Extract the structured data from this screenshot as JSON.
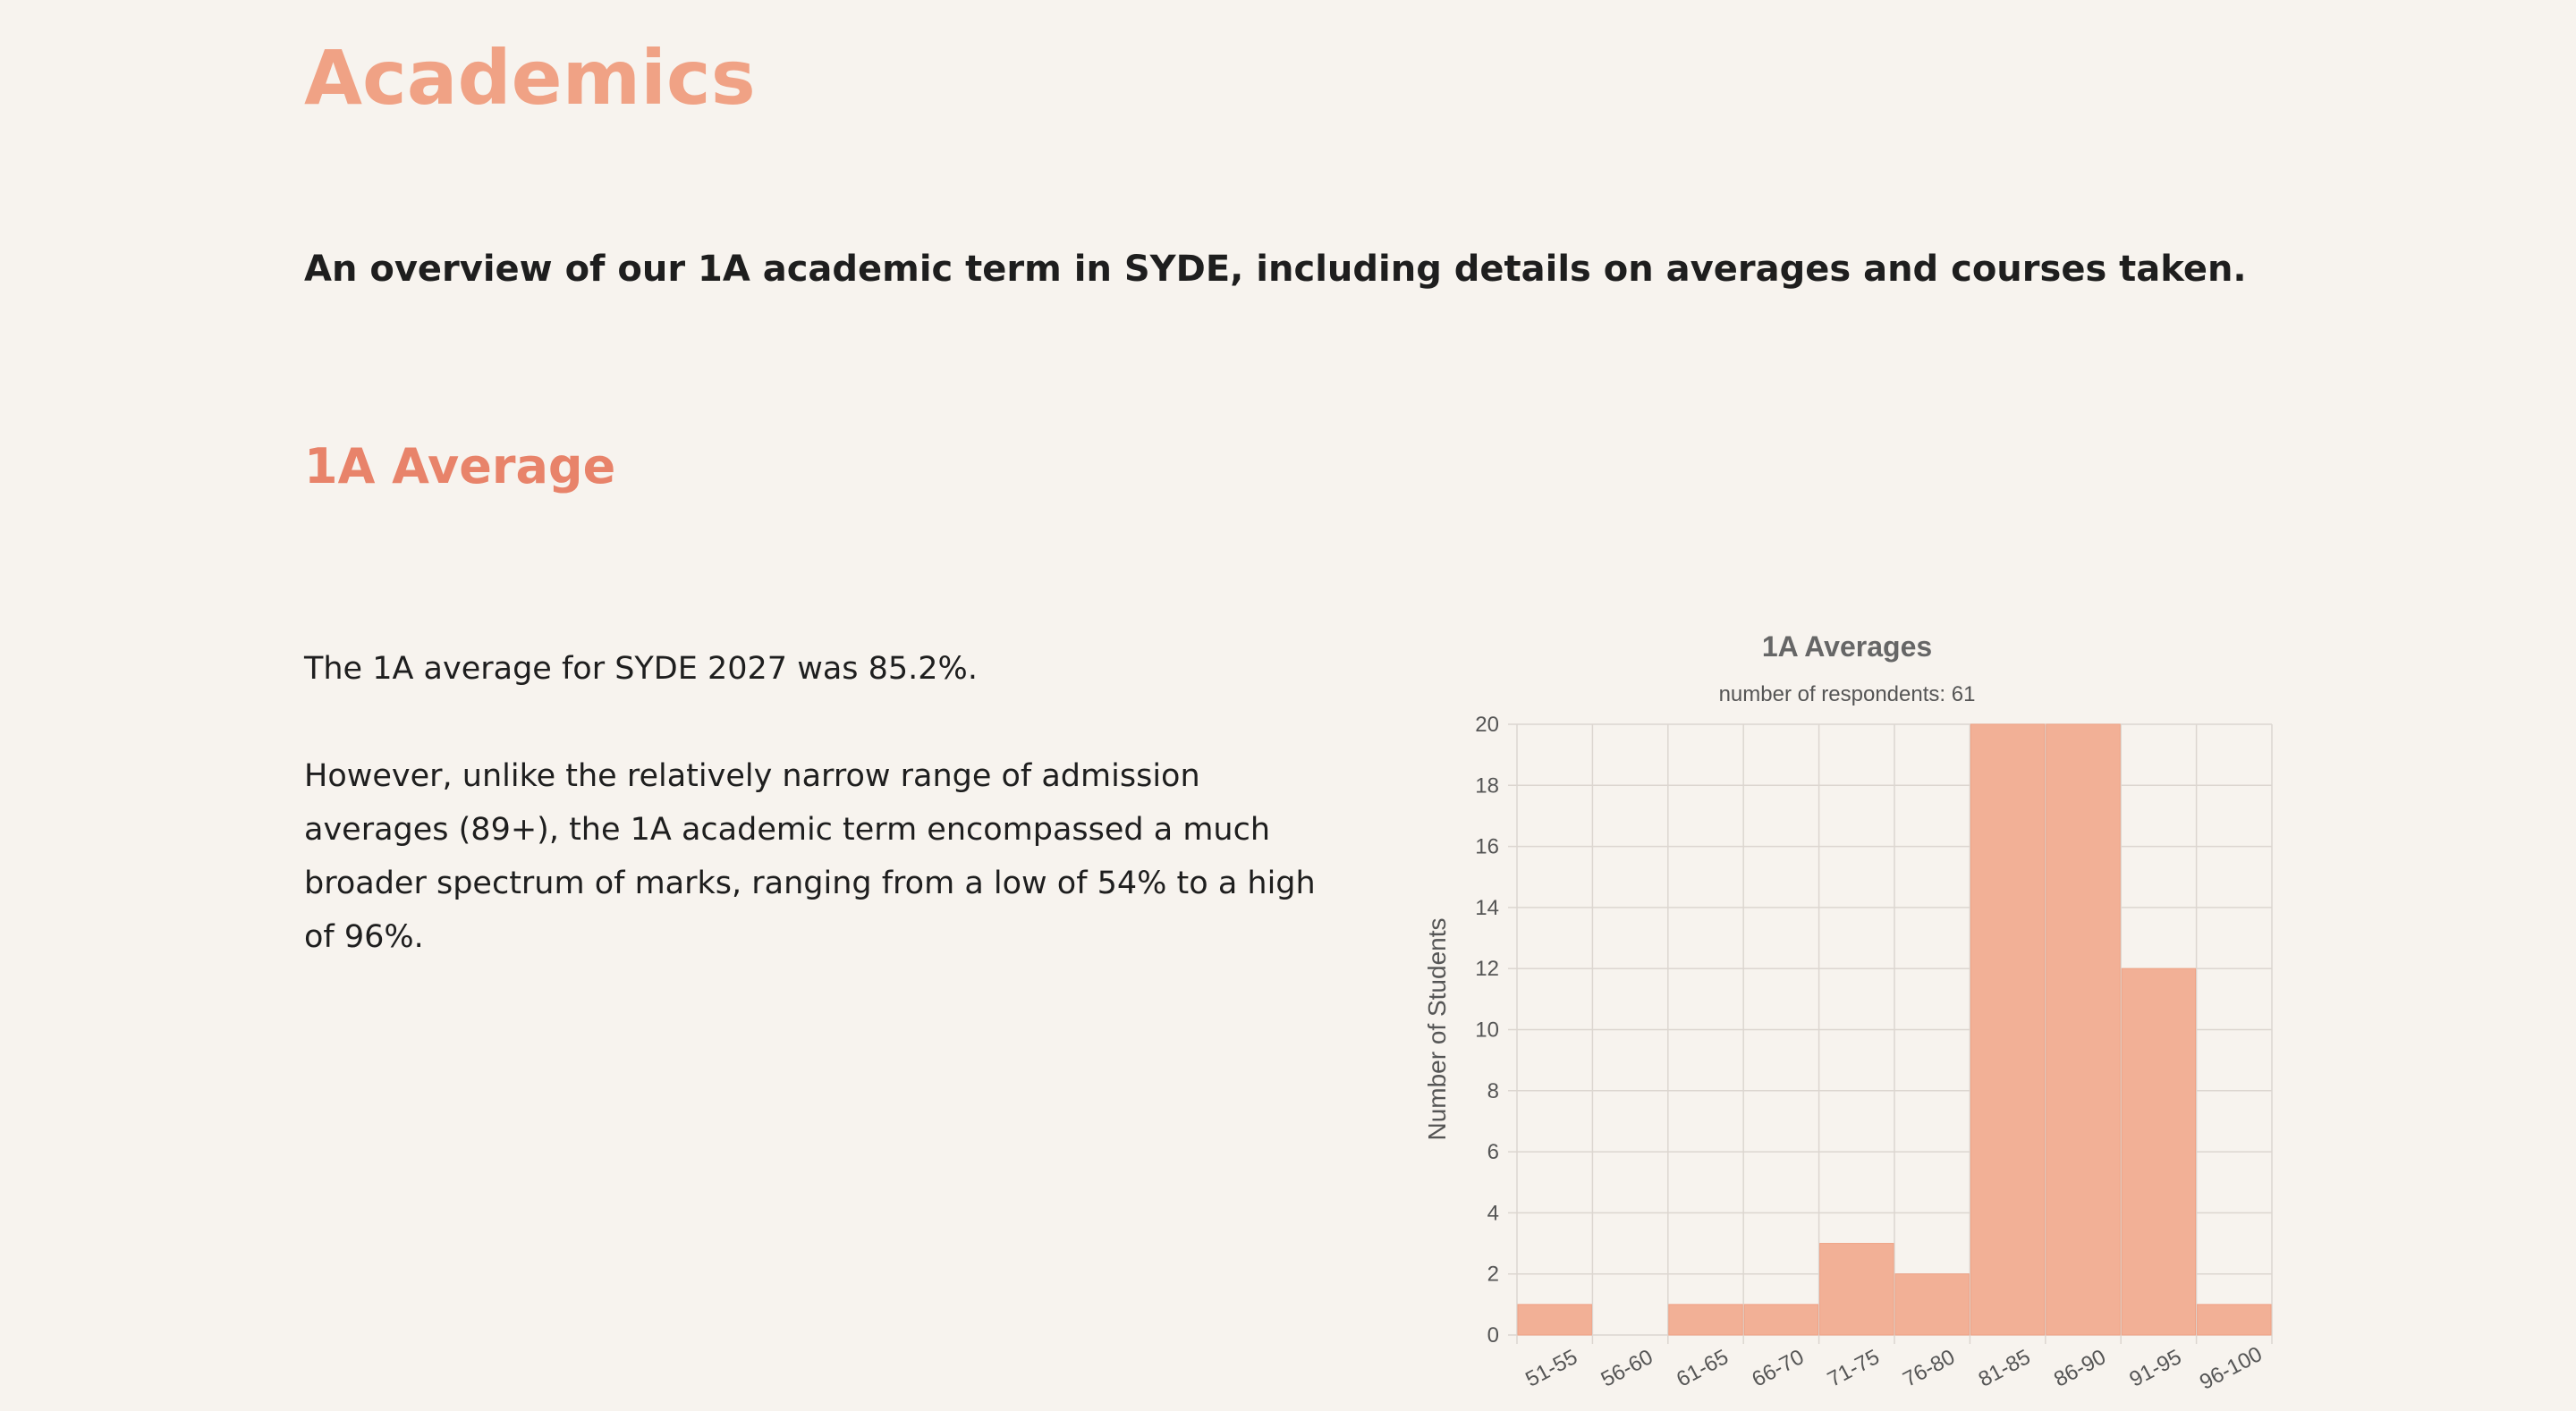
{
  "page": {
    "title": "Academics",
    "subtitle": "An overview of our 1A academic term in SYDE, including details on averages and courses taken."
  },
  "section": {
    "title": "1A Average",
    "paragraph1": "The 1A average for SYDE 2027 was 85.2%.",
    "paragraph2": "However, unlike the relatively narrow range of admission averages (89+), the 1A academic term encompassed a much broader spectrum of marks, ranging from a low of 54% to a high of 96%."
  },
  "chart_data": {
    "type": "bar",
    "title": "1A Averages",
    "subtitle": "number of respondents: 61",
    "xlabel": "",
    "ylabel": "Number of Students",
    "categories": [
      "51-55",
      "56-60",
      "61-65",
      "66-70",
      "71-75",
      "76-80",
      "81-85",
      "86-90",
      "91-95",
      "96-100"
    ],
    "values": [
      1,
      0,
      1,
      1,
      3,
      2,
      20,
      20,
      12,
      1
    ],
    "ylim": [
      0,
      20
    ],
    "yticks": [
      0,
      2,
      4,
      6,
      8,
      10,
      12,
      14,
      16,
      18,
      20
    ],
    "grid": true,
    "legend": "none",
    "colors": {
      "bar_fill": "#f2b096",
      "bar_stroke": "#f0a285",
      "grid": "#dcd6d0",
      "axis_text": "#555555",
      "title_text": "#666666"
    }
  }
}
